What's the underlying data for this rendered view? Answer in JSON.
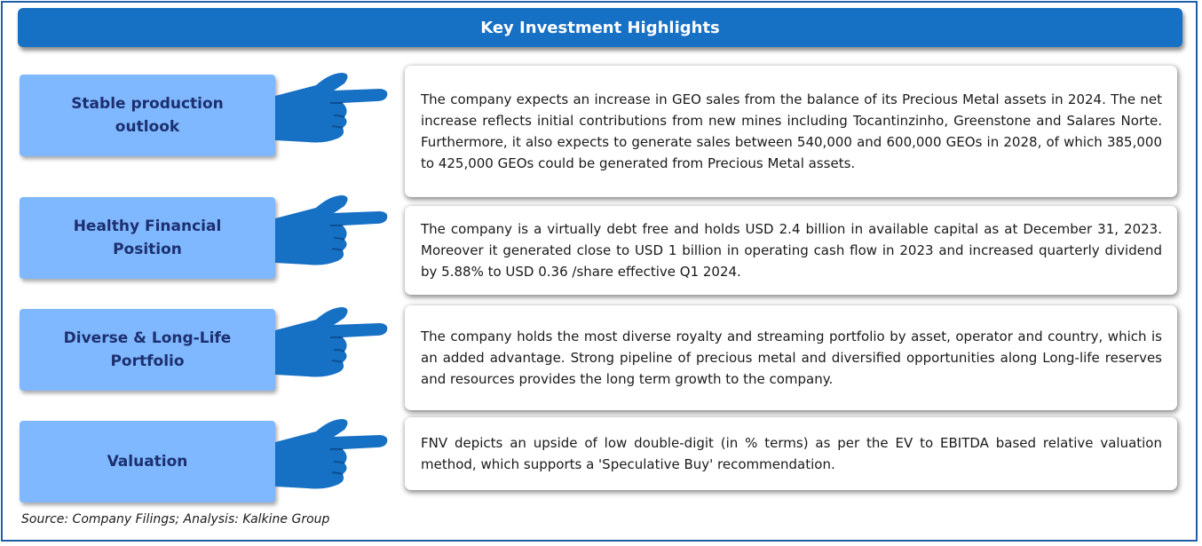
{
  "title": "Key Investment Highlights",
  "colors": {
    "header_bg": "#1670c4",
    "label_bg": "#7fb8ff",
    "label_text": "#1d2f6f",
    "hand": "#1670c4",
    "frame_border": "#1f5fa8"
  },
  "hand_icon": "pointing-hand-icon",
  "highlights": [
    {
      "label": "Stable production outlook",
      "text": "The company expects an increase in GEO sales from the balance of its Precious Metal assets in 2024. The net increase reflects initial contributions from new mines including Tocantinzinho, Greenstone and Salares Norte. Furthermore, it also expects to generate sales between 540,000 and 600,000 GEOs in 2028, of which 385,000 to 425,000 GEOs could be generated from Precious Metal assets."
    },
    {
      "label": "Healthy Financial Position",
      "text": "The company is a virtually debt free and holds USD 2.4 billion in available capital as at December 31, 2023. Moreover it generated close to USD 1 billion in operating cash flow in 2023 and increased quarterly dividend by 5.88% to USD 0.36 /share effective Q1 2024."
    },
    {
      "label": "Diverse & Long-Life Portfolio",
      "text": "The company holds the most diverse royalty and streaming portfolio by asset, operator and country, which is an added advantage. Strong pipeline of precious metal and diversified opportunities along Long-life reserves and resources provides the long term growth to the company."
    },
    {
      "label": "Valuation",
      "text": "FNV depicts an upside of low double-digit (in % terms) as per the EV to EBITDA based relative valuation method, which supports a 'Speculative Buy' recommendation."
    }
  ],
  "source": "Source: Company Filings; Analysis: Kalkine Group"
}
